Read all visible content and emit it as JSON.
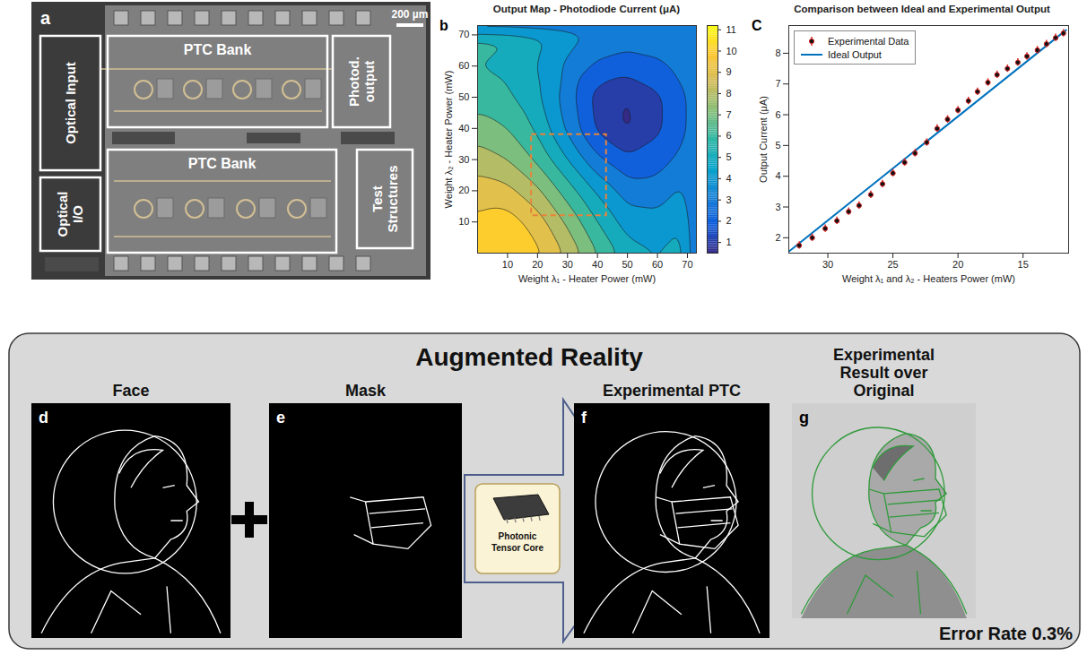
{
  "chart_data": [
    {
      "type": "contour",
      "letter": "b",
      "title": "Output Map - Photodiode Current (μA)",
      "x_label": "Weight λ₁ - Heater Power (mW)",
      "y_label": "Weight λ₂ - Heater Power (mW)",
      "x": [
        0,
        10,
        20,
        30,
        40,
        50,
        60,
        70
      ],
      "y": [
        0,
        10,
        20,
        30,
        40,
        50,
        60,
        70
      ],
      "z": [
        [
          10.5,
          11,
          10.2,
          8.8,
          7,
          5.5,
          5,
          5.5
        ],
        [
          10.2,
          10.5,
          9.5,
          7.8,
          6,
          4.5,
          4.3,
          5
        ],
        [
          9.5,
          9.3,
          8.2,
          6.5,
          4.8,
          3.5,
          3.5,
          4.3
        ],
        [
          8.5,
          8,
          6.8,
          5,
          3.2,
          2.2,
          2.5,
          3.5
        ],
        [
          7.5,
          7,
          5.8,
          3.8,
          1.8,
          0.8,
          1.8,
          3
        ],
        [
          6.5,
          6.2,
          5.2,
          3.5,
          1.6,
          0.9,
          1.8,
          3
        ],
        [
          6,
          5.8,
          5,
          3.8,
          2.8,
          2.5,
          2.8,
          3.3
        ],
        [
          6.3,
          6,
          5.3,
          4.5,
          3.8,
          3.5,
          3.5,
          3.8
        ]
      ],
      "xlim": [
        0,
        73
      ],
      "ylim": [
        0,
        73
      ],
      "xticks": [
        10,
        20,
        30,
        40,
        50,
        60,
        70
      ],
      "yticks": [
        10,
        20,
        30,
        40,
        50,
        60,
        70
      ],
      "colorbar": {
        "lim": [
          0.5,
          11.2
        ],
        "ticks": [
          1,
          2,
          3,
          4,
          5,
          6,
          7,
          8,
          9,
          10,
          11
        ]
      },
      "region": {
        "x": [
          18,
          43
        ],
        "y": [
          12,
          38
        ],
        "color": "#e8833a",
        "line_style": "dashed"
      }
    },
    {
      "type": "line",
      "letter": "C",
      "title": "Comparison between Ideal and Experimental Output",
      "x_label": "Weight λ₁ and λ₂ - Heaters Power (mW)",
      "y_label": "Output Current (μA)",
      "xlim": [
        33,
        11.5
      ],
      "ylim": [
        1.5,
        8.9
      ],
      "xticks": [
        30,
        25,
        20,
        15
      ],
      "yticks": [
        2,
        3,
        4,
        5,
        6,
        7,
        8
      ],
      "grid": false,
      "legend": "upper left",
      "series": [
        {
          "name": "Experimental Data",
          "type": "scatter",
          "color": "#d62728",
          "marker": "circle",
          "x": [
            32.2,
            31.2,
            30.2,
            29.3,
            28.4,
            27.6,
            26.7,
            25.8,
            25.0,
            24.1,
            23.3,
            22.4,
            21.6,
            20.8,
            20.0,
            19.2,
            18.5,
            17.7,
            17.0,
            16.2,
            15.4,
            14.7,
            13.9,
            13.2,
            12.5,
            11.9
          ],
          "values": [
            1.75,
            2.0,
            2.3,
            2.55,
            2.85,
            3.05,
            3.4,
            3.75,
            4.1,
            4.45,
            4.75,
            5.1,
            5.55,
            5.85,
            6.15,
            6.45,
            6.75,
            7.05,
            7.3,
            7.5,
            7.7,
            7.9,
            8.1,
            8.3,
            8.5,
            8.65
          ],
          "errors": [
            0.12,
            0.12,
            0.12,
            0.12,
            0.12,
            0.12,
            0.12,
            0.12,
            0.12,
            0.12,
            0.12,
            0.12,
            0.12,
            0.12,
            0.12,
            0.12,
            0.12,
            0.12,
            0.12,
            0.12,
            0.12,
            0.12,
            0.12,
            0.12,
            0.12,
            0.12
          ]
        },
        {
          "name": "Ideal Output",
          "type": "line",
          "color": "#0072bd",
          "line_style": "solid",
          "x": [
            33,
            11.7
          ],
          "values": [
            1.55,
            8.75
          ]
        }
      ]
    }
  ],
  "micrograph": {
    "letter": "a",
    "scale_bar": "200 µm",
    "regions": [
      "Optical Input",
      "PTC Bank",
      "Photod. output",
      "Optical I/O",
      "PTC Bank",
      "Test Structures"
    ]
  },
  "augmented_reality": {
    "title": "Augmented Reality",
    "panels": [
      {
        "letter": "d",
        "title": "Face"
      },
      {
        "letter": "e",
        "title": "Mask"
      },
      {
        "letter": "f",
        "title": "Experimental PTC"
      },
      {
        "letter": "g",
        "title": "Experimental Result over Original"
      }
    ],
    "processor": "Photonic Tensor Core",
    "error_rate": "Error Rate 0.3%"
  }
}
